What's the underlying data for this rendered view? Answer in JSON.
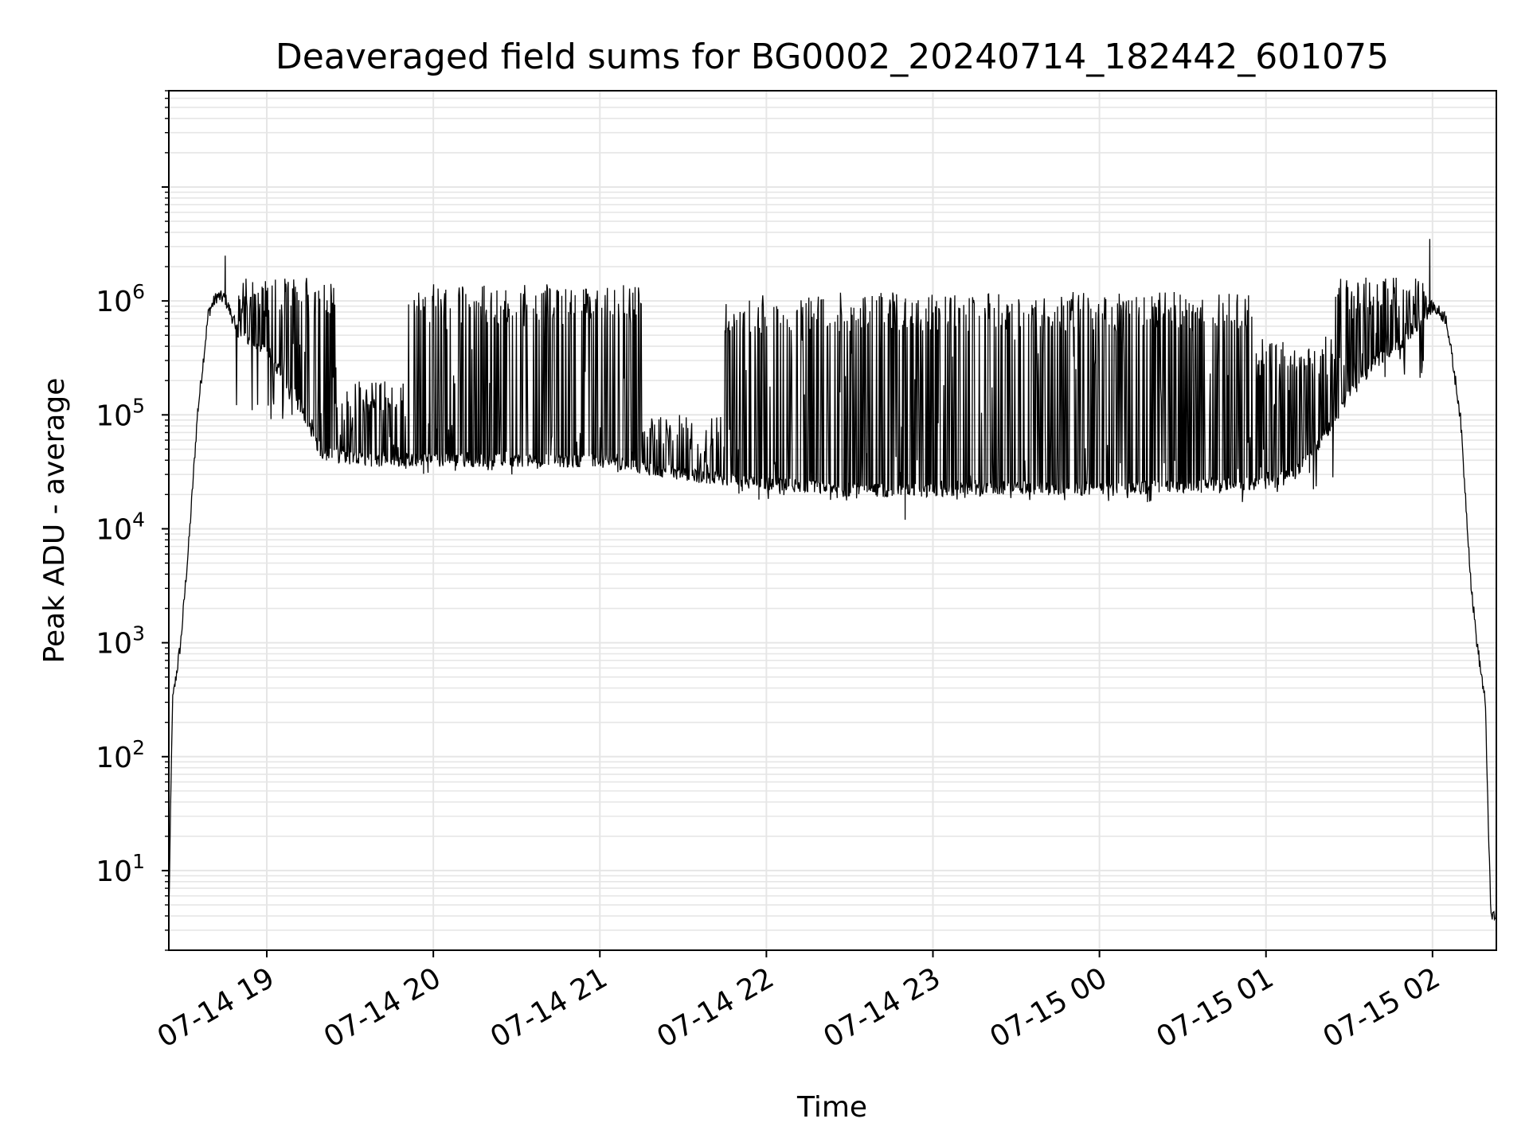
{
  "chart_data": {
    "type": "line",
    "title": "Deaveraged field sums for BG0002_20240714_182442_601075",
    "xlabel": "Time",
    "ylabel": "Peak ADU - average",
    "yscale": "log",
    "ylim": [
      2,
      70000000
    ],
    "xlim": [
      "2024-07-14 18:24:42",
      "2024-07-15 02:23:00"
    ],
    "grid": true,
    "line_color": "#000000",
    "grid_color": "#e6e6e6",
    "x_tick_labels": [
      "07-14 19",
      "07-14 20",
      "07-14 21",
      "07-14 22",
      "07-14 23",
      "07-15 00",
      "07-15 01",
      "07-15 02"
    ],
    "y_tick_labels": [
      {
        "base": "10",
        "exp": "1"
      },
      {
        "base": "10",
        "exp": "2"
      },
      {
        "base": "10",
        "exp": "3"
      },
      {
        "base": "10",
        "exp": "4"
      },
      {
        "base": "10",
        "exp": "5"
      },
      {
        "base": "10",
        "exp": "6"
      }
    ],
    "series": [
      {
        "envelope_baseline": [
          [
            "2024-07-14 18:24:42",
            4
          ],
          [
            "2024-07-14 18:26:00",
            300
          ],
          [
            "2024-07-14 18:29:00",
            1000
          ],
          [
            "2024-07-14 18:32:00",
            8000
          ],
          [
            "2024-07-14 18:35:00",
            100000
          ],
          [
            "2024-07-14 18:39:00",
            800000
          ],
          [
            "2024-07-14 18:42:00",
            1100000
          ],
          [
            "2024-07-14 18:45:00",
            1050000
          ],
          [
            "2024-07-14 18:50:00",
            500000
          ],
          [
            "2024-07-14 19:00:00",
            350000
          ],
          [
            "2024-07-14 19:10:00",
            150000
          ],
          [
            "2024-07-14 19:20:00",
            45000
          ],
          [
            "2024-07-14 19:35:00",
            40000
          ],
          [
            "2024-07-14 19:50:00",
            40000
          ],
          [
            "2024-07-14 20:00:00",
            40000
          ],
          [
            "2024-07-14 20:30:00",
            40000
          ],
          [
            "2024-07-14 21:00:00",
            40000
          ],
          [
            "2024-07-14 21:30:00",
            30000
          ],
          [
            "2024-07-14 22:00:00",
            25000
          ],
          [
            "2024-07-14 22:30:00",
            22000
          ],
          [
            "2024-07-14 23:00:00",
            22000
          ],
          [
            "2024-07-14 23:30:00",
            23000
          ],
          [
            "2024-07-15 00:00:00",
            22000
          ],
          [
            "2024-07-15 00:30:00",
            24000
          ],
          [
            "2024-07-15 01:00:00",
            25000
          ],
          [
            "2024-07-15 01:10:00",
            30000
          ],
          [
            "2024-07-15 01:20:00",
            60000
          ],
          [
            "2024-07-15 01:30:00",
            150000
          ],
          [
            "2024-07-15 01:40:00",
            300000
          ],
          [
            "2024-07-15 01:50:00",
            450000
          ],
          [
            "2024-07-15 02:00:00",
            900000
          ],
          [
            "2024-07-15 02:05:00",
            700000
          ],
          [
            "2024-07-15 02:10:00",
            100000
          ],
          [
            "2024-07-15 02:14:00",
            3000
          ],
          [
            "2024-07-15 02:16:00",
            1000
          ],
          [
            "2024-07-15 02:19:00",
            300
          ],
          [
            "2024-07-15 02:21:00",
            4
          ],
          [
            "2024-07-15 02:23:00",
            4
          ]
        ],
        "spike_regions": [
          {
            "from": "2024-07-14 18:48:00",
            "to": "2024-07-14 19:25:00",
            "peak": 1600000,
            "low": 90000
          },
          {
            "from": "2024-07-14 19:25:00",
            "to": "2024-07-14 19:50:00",
            "peak": 200000,
            "low": 35000
          },
          {
            "from": "2024-07-14 19:50:00",
            "to": "2024-07-14 21:15:00",
            "peak": 1400000,
            "low": 30000
          },
          {
            "from": "2024-07-14 21:15:00",
            "to": "2024-07-14 21:45:00",
            "peak": 100000,
            "low": 25000
          },
          {
            "from": "2024-07-14 21:45:00",
            "to": "2024-07-15 00:55:00",
            "peak": 1200000,
            "low": 17000
          },
          {
            "from": "2024-07-15 00:55:00",
            "to": "2024-07-15 01:25:00",
            "peak": 500000,
            "low": 20000
          },
          {
            "from": "2024-07-15 01:25:00",
            "to": "2024-07-15 01:58:00",
            "peak": 1600000,
            "low": 200000
          }
        ],
        "notable_peaks": [
          [
            "2024-07-14 18:45:00",
            2500000
          ],
          [
            "2024-07-15 01:59:00",
            3500000
          ],
          [
            "2024-07-15 01:36:00",
            1600000
          ],
          [
            "2024-07-14 22:50:00",
            12000
          ]
        ]
      }
    ]
  }
}
